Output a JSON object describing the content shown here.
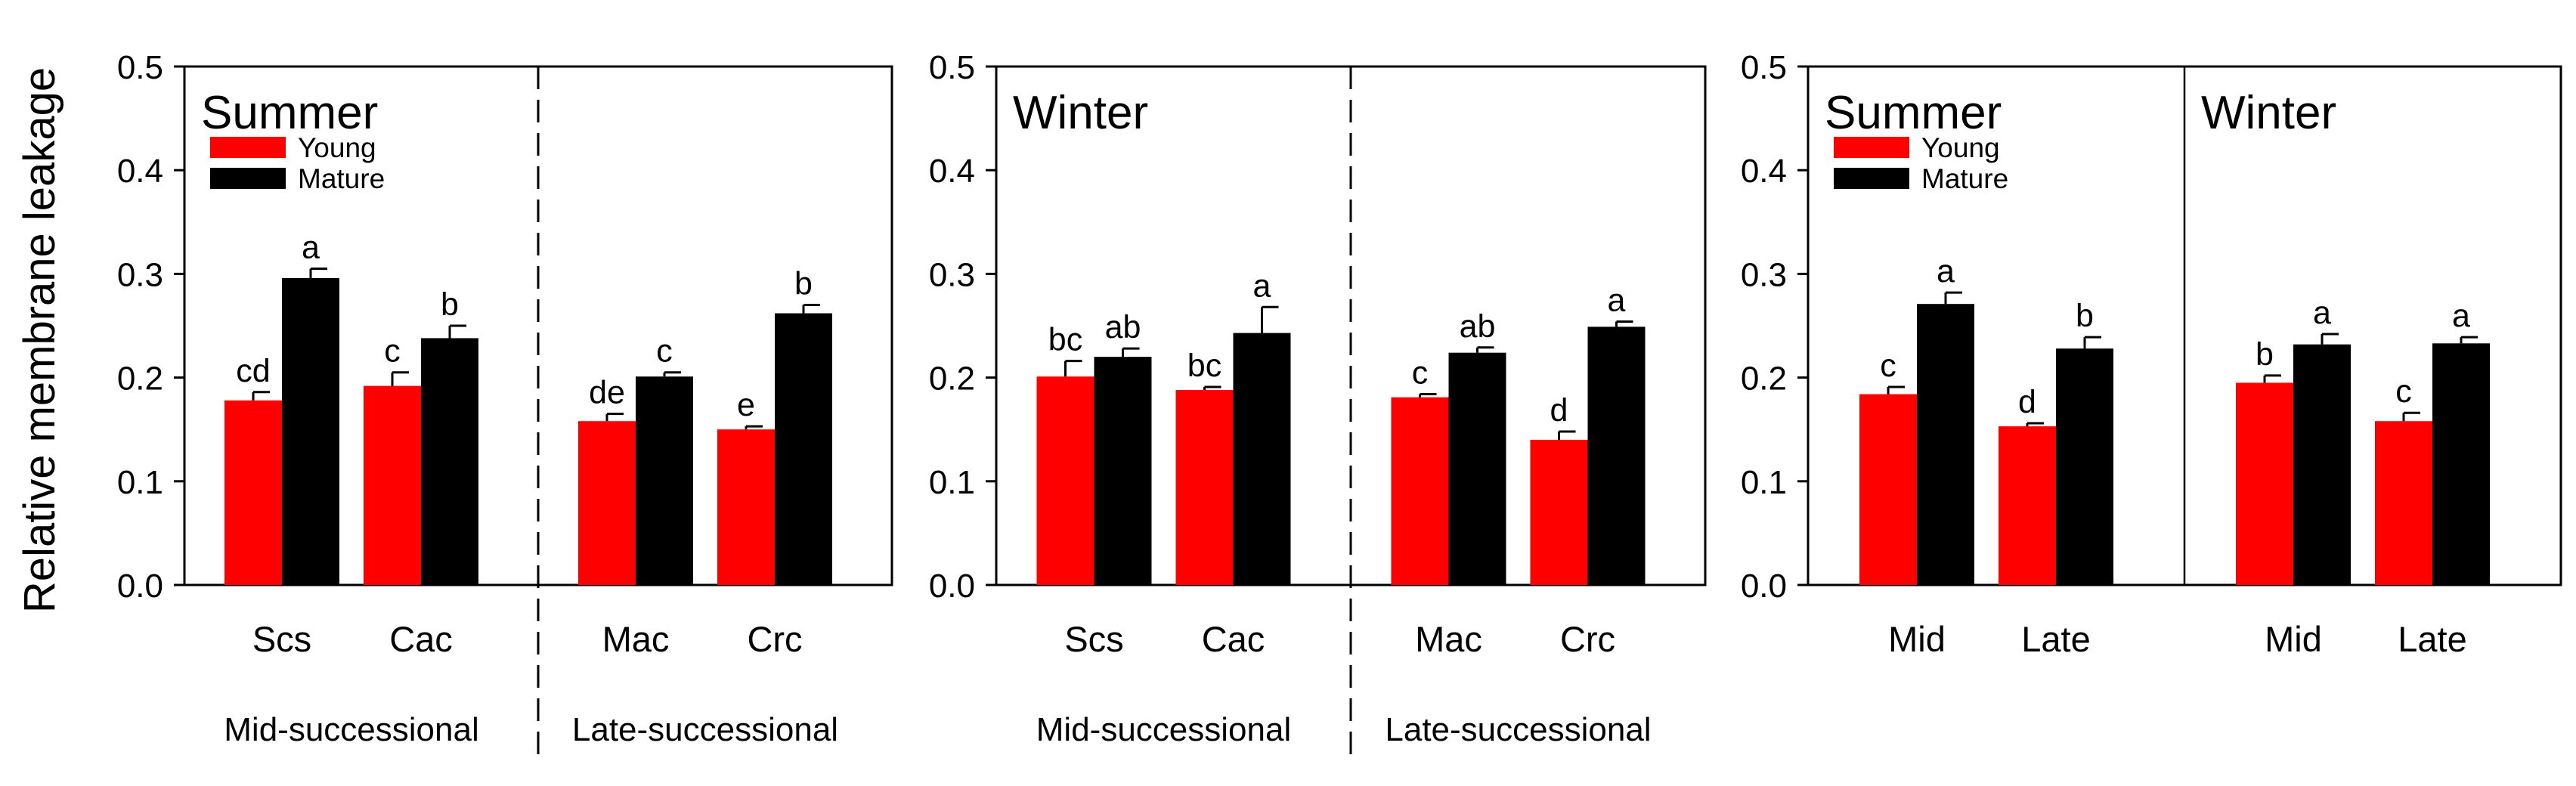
{
  "colors": {
    "young": "#ff0000",
    "mature": "#000000",
    "axis": "#000000"
  },
  "chart_data": {
    "type": "bar",
    "ylabel": "Relative membrane leakage",
    "ylim": [
      0,
      0.5
    ],
    "yticks": [
      "0.0",
      "0.1",
      "0.2",
      "0.3",
      "0.4",
      "0.5"
    ],
    "series_names": [
      "Young",
      "Mature"
    ],
    "panels": [
      {
        "title_left": "Summer",
        "title_right": "",
        "legend": true,
        "separator": "dashed",
        "categories": [
          "Scs",
          "Cac",
          "Mac",
          "Crc"
        ],
        "groups": [
          "Mid-successional",
          "Late-successional"
        ],
        "series": [
          {
            "name": "Young",
            "values": [
              0.178,
              0.192,
              0.158,
              0.15
            ],
            "errors": [
              0.008,
              0.013,
              0.007,
              0.003
            ],
            "labels": [
              "cd",
              "c",
              "de",
              "e"
            ]
          },
          {
            "name": "Mature",
            "values": [
              0.296,
              0.238,
              0.201,
              0.262
            ],
            "errors": [
              0.009,
              0.012,
              0.004,
              0.008
            ],
            "labels": [
              "a",
              "b",
              "c",
              "b"
            ]
          }
        ]
      },
      {
        "title_left": "Winter",
        "title_right": "",
        "legend": false,
        "separator": "dashed",
        "categories": [
          "Scs",
          "Cac",
          "Mac",
          "Crc"
        ],
        "groups": [
          "Mid-successional",
          "Late-successional"
        ],
        "series": [
          {
            "name": "Young",
            "values": [
              0.201,
              0.188,
              0.181,
              0.14
            ],
            "errors": [
              0.015,
              0.003,
              0.003,
              0.008
            ],
            "labels": [
              "bc",
              "bc",
              "c",
              "d"
            ]
          },
          {
            "name": "Mature",
            "values": [
              0.22,
              0.243,
              0.224,
              0.249
            ],
            "errors": [
              0.008,
              0.025,
              0.005,
              0.005
            ],
            "labels": [
              "ab",
              "a",
              "ab",
              "a"
            ]
          }
        ]
      },
      {
        "title_left": "Summer",
        "title_right": "Winter",
        "legend": true,
        "separator": "solid",
        "categories": [
          "Mid",
          "Late",
          "Mid",
          "Late"
        ],
        "groups": [],
        "series": [
          {
            "name": "Young",
            "values": [
              0.184,
              0.153,
              0.195,
              0.158
            ],
            "errors": [
              0.007,
              0.003,
              0.007,
              0.008
            ],
            "labels": [
              "c",
              "d",
              "b",
              "c"
            ]
          },
          {
            "name": "Mature",
            "values": [
              0.271,
              0.228,
              0.232,
              0.233
            ],
            "errors": [
              0.011,
              0.011,
              0.01,
              0.006
            ],
            "labels": [
              "a",
              "b",
              "a",
              "a"
            ]
          }
        ]
      }
    ]
  }
}
